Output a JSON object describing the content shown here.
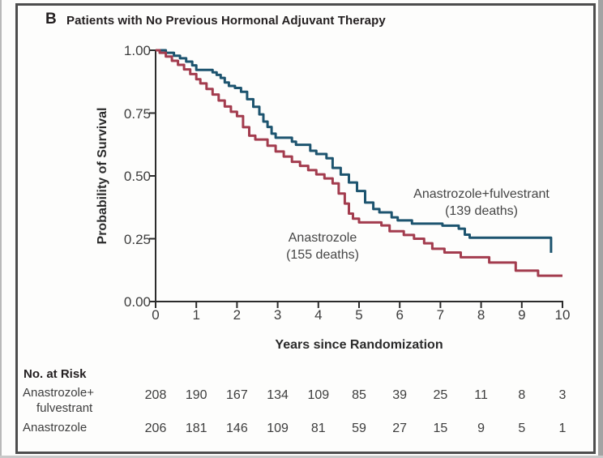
{
  "panel": {
    "label": "B",
    "title": "Patients with No Previous Hormonal Adjuvant Therapy"
  },
  "chart_data": {
    "type": "line",
    "subtype": "kaplan-meier-step",
    "xlabel": "Years since Randomization",
    "ylabel": "Probability of Survival",
    "xlim": [
      0,
      10
    ],
    "ylim": [
      0.0,
      1.0
    ],
    "xticks": [
      "0",
      "1",
      "2",
      "3",
      "4",
      "5",
      "6",
      "7",
      "8",
      "9",
      "10"
    ],
    "yticks": [
      "1.00",
      "0.75",
      "0.50",
      "0.25",
      "0.00"
    ],
    "grid": false,
    "legend_position": "inline-annotations",
    "series": [
      {
        "name": "Anastrozole+fulvestrant",
        "deaths": 139,
        "color": "#1d546f",
        "label_lines": [
          "Anastrozole+fulvestrant",
          "(139 deaths)"
        ],
        "points": [
          [
            0,
            1.0
          ],
          [
            0.25,
            0.99
          ],
          [
            0.45,
            0.978
          ],
          [
            0.6,
            0.968
          ],
          [
            0.75,
            0.955
          ],
          [
            0.9,
            0.94
          ],
          [
            1.0,
            0.922
          ],
          [
            1.4,
            0.912
          ],
          [
            1.5,
            0.902
          ],
          [
            1.6,
            0.89
          ],
          [
            1.7,
            0.872
          ],
          [
            1.8,
            0.858
          ],
          [
            1.95,
            0.85
          ],
          [
            2.1,
            0.835
          ],
          [
            2.25,
            0.805
          ],
          [
            2.4,
            0.775
          ],
          [
            2.55,
            0.745
          ],
          [
            2.65,
            0.716
          ],
          [
            2.75,
            0.695
          ],
          [
            2.85,
            0.668
          ],
          [
            2.95,
            0.652
          ],
          [
            3.35,
            0.636
          ],
          [
            3.45,
            0.624
          ],
          [
            3.8,
            0.6
          ],
          [
            3.95,
            0.587
          ],
          [
            4.2,
            0.57
          ],
          [
            4.35,
            0.532
          ],
          [
            4.55,
            0.505
          ],
          [
            4.75,
            0.474
          ],
          [
            4.95,
            0.44
          ],
          [
            5.15,
            0.394
          ],
          [
            5.35,
            0.368
          ],
          [
            5.5,
            0.355
          ],
          [
            5.8,
            0.335
          ],
          [
            5.95,
            0.323
          ],
          [
            6.3,
            0.31
          ],
          [
            7.05,
            0.302
          ],
          [
            7.45,
            0.29
          ],
          [
            7.6,
            0.266
          ],
          [
            7.72,
            0.254
          ],
          [
            9.72,
            0.254
          ],
          [
            9.72,
            0.194
          ]
        ]
      },
      {
        "name": "Anastrozole",
        "deaths": 155,
        "color": "#a33c4e",
        "label_lines": [
          "Anastrozole",
          "(155 deaths)"
        ],
        "points": [
          [
            0,
            1.0
          ],
          [
            0.1,
            0.99
          ],
          [
            0.25,
            0.975
          ],
          [
            0.4,
            0.958
          ],
          [
            0.55,
            0.942
          ],
          [
            0.7,
            0.924
          ],
          [
            0.85,
            0.905
          ],
          [
            1.0,
            0.885
          ],
          [
            1.1,
            0.868
          ],
          [
            1.25,
            0.846
          ],
          [
            1.4,
            0.824
          ],
          [
            1.55,
            0.8
          ],
          [
            1.7,
            0.776
          ],
          [
            1.85,
            0.755
          ],
          [
            2.0,
            0.738
          ],
          [
            2.15,
            0.694
          ],
          [
            2.3,
            0.66
          ],
          [
            2.45,
            0.645
          ],
          [
            2.75,
            0.62
          ],
          [
            2.95,
            0.597
          ],
          [
            3.15,
            0.577
          ],
          [
            3.35,
            0.556
          ],
          [
            3.55,
            0.54
          ],
          [
            3.75,
            0.523
          ],
          [
            3.95,
            0.506
          ],
          [
            4.15,
            0.49
          ],
          [
            4.35,
            0.47
          ],
          [
            4.5,
            0.43
          ],
          [
            4.65,
            0.39
          ],
          [
            4.75,
            0.35
          ],
          [
            4.85,
            0.33
          ],
          [
            5.0,
            0.315
          ],
          [
            5.55,
            0.303
          ],
          [
            5.75,
            0.28
          ],
          [
            6.1,
            0.265
          ],
          [
            6.35,
            0.25
          ],
          [
            6.6,
            0.232
          ],
          [
            6.8,
            0.21
          ],
          [
            7.1,
            0.195
          ],
          [
            7.5,
            0.176
          ],
          [
            8.2,
            0.155
          ],
          [
            8.85,
            0.123
          ],
          [
            9.4,
            0.103
          ],
          [
            10.0,
            0.103
          ]
        ]
      }
    ]
  },
  "risk_table": {
    "heading": "No. at Risk",
    "rows": [
      {
        "label_lines": [
          "Anastrozole+",
          "fulvestrant"
        ],
        "values": [
          "208",
          "190",
          "167",
          "134",
          "109",
          "85",
          "39",
          "25",
          "11",
          "8",
          "3"
        ]
      },
      {
        "label_lines": [
          "Anastrozole"
        ],
        "values": [
          "206",
          "181",
          "146",
          "109",
          "81",
          "59",
          "27",
          "15",
          "9",
          "5",
          "1"
        ]
      }
    ]
  }
}
